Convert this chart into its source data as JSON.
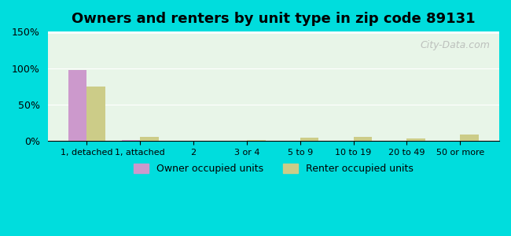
{
  "title": "Owners and renters by unit type in zip code 89131",
  "categories": [
    "1, detached",
    "1, attached",
    "2",
    "3 or 4",
    "5 to 9",
    "10 to 19",
    "20 to 49",
    "50 or more"
  ],
  "owner_values": [
    97,
    2,
    0,
    0,
    0,
    0,
    0,
    0
  ],
  "renter_values": [
    75,
    6,
    0,
    2,
    5,
    6,
    4,
    9
  ],
  "owner_color": "#cc99cc",
  "renter_color": "#cccc88",
  "background_outer": "#00dddd",
  "background_inner_top": "#e8f5e8",
  "background_inner_bottom": "#f5fff5",
  "ylim": [
    0,
    150
  ],
  "yticks": [
    0,
    50,
    100,
    150
  ],
  "ytick_labels": [
    "0%",
    "50%",
    "100%",
    "150%"
  ],
  "bar_width": 0.35,
  "title_fontsize": 13,
  "legend_label_owner": "Owner occupied units",
  "legend_label_renter": "Renter occupied units",
  "watermark": "City-Data.com"
}
